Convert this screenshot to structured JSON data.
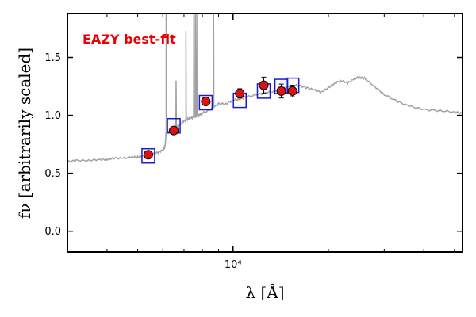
{
  "chart_data": {
    "type": "scatter",
    "annotation": "EAZY best-fit",
    "xlabel": "λ [Å]",
    "ylabel": "fν [arbitrarily scaled]",
    "xscale": "log",
    "xlim": [
      3000,
      53000
    ],
    "ylim": [
      -0.18,
      1.88
    ],
    "yticks": [
      0.0,
      0.5,
      1.0,
      1.5
    ],
    "ytick_labels": [
      "0.0",
      "0.5",
      "1.0",
      "1.5"
    ],
    "xticks_major": [
      10000
    ],
    "xtick_labels": [
      "10⁴"
    ],
    "xticks_minor": [
      4000,
      5000,
      6000,
      7000,
      8000,
      9000,
      20000,
      30000,
      40000,
      50000
    ],
    "grid": false,
    "colors": {
      "model": "#a0a0a0",
      "observed": "#e01010",
      "model_photometry": "#1a1acc",
      "annotation": "#ee0000"
    },
    "model_photometry": {
      "x": [
        5400,
        6500,
        8200,
        10500,
        12500,
        14200,
        15400
      ],
      "y": [
        0.65,
        0.91,
        1.11,
        1.13,
        1.21,
        1.25,
        1.26
      ]
    },
    "observed": {
      "x": [
        5400,
        6500,
        8200,
        10500,
        12500,
        14200,
        15400
      ],
      "y": [
        0.66,
        0.87,
        1.12,
        1.19,
        1.26,
        1.21,
        1.21
      ],
      "yerr": [
        0.01,
        0.01,
        0.02,
        0.04,
        0.07,
        0.06,
        0.05
      ]
    },
    "model_spectrum": {
      "x": [
        3000,
        3200,
        3500,
        3800,
        4000,
        4200,
        4500,
        4800,
        5000,
        5200,
        5500,
        5800,
        6000,
        6100,
        6150,
        6300,
        6500,
        6600,
        6800,
        7000,
        7200,
        7400,
        7600,
        7800,
        8000,
        8500,
        9000,
        9500,
        10000,
        10500,
        11000,
        12000,
        13000,
        14000,
        15000,
        16000,
        17000,
        18000,
        19000,
        20000,
        21000,
        22000,
        23000,
        24000,
        25000,
        26000,
        28000,
        30000,
        33000,
        36000,
        40000,
        45000,
        50000,
        53000
      ],
      "y": [
        0.6,
        0.61,
        0.61,
        0.62,
        0.62,
        0.63,
        0.63,
        0.64,
        0.64,
        0.65,
        0.66,
        0.68,
        0.7,
        0.73,
        0.85,
        0.87,
        0.88,
        0.9,
        0.92,
        0.95,
        0.97,
        0.98,
        0.99,
        1.0,
        1.02,
        1.05,
        1.1,
        1.1,
        1.13,
        1.14,
        1.16,
        1.18,
        1.2,
        1.22,
        1.25,
        1.26,
        1.24,
        1.22,
        1.2,
        1.24,
        1.28,
        1.3,
        1.28,
        1.31,
        1.33,
        1.32,
        1.25,
        1.18,
        1.12,
        1.08,
        1.05,
        1.04,
        1.03,
        1.02
      ],
      "emission_lines": [
        {
          "x": 6150,
          "peak": 1.88
        },
        {
          "x": 6610,
          "peak": 1.3
        },
        {
          "x": 7100,
          "peak": 1.73
        },
        {
          "x": 7520,
          "peak": 1.88
        },
        {
          "x": 7600,
          "peak": 1.88
        },
        {
          "x": 7680,
          "peak": 1.88
        },
        {
          "x": 8680,
          "peak": 1.88
        }
      ]
    }
  }
}
